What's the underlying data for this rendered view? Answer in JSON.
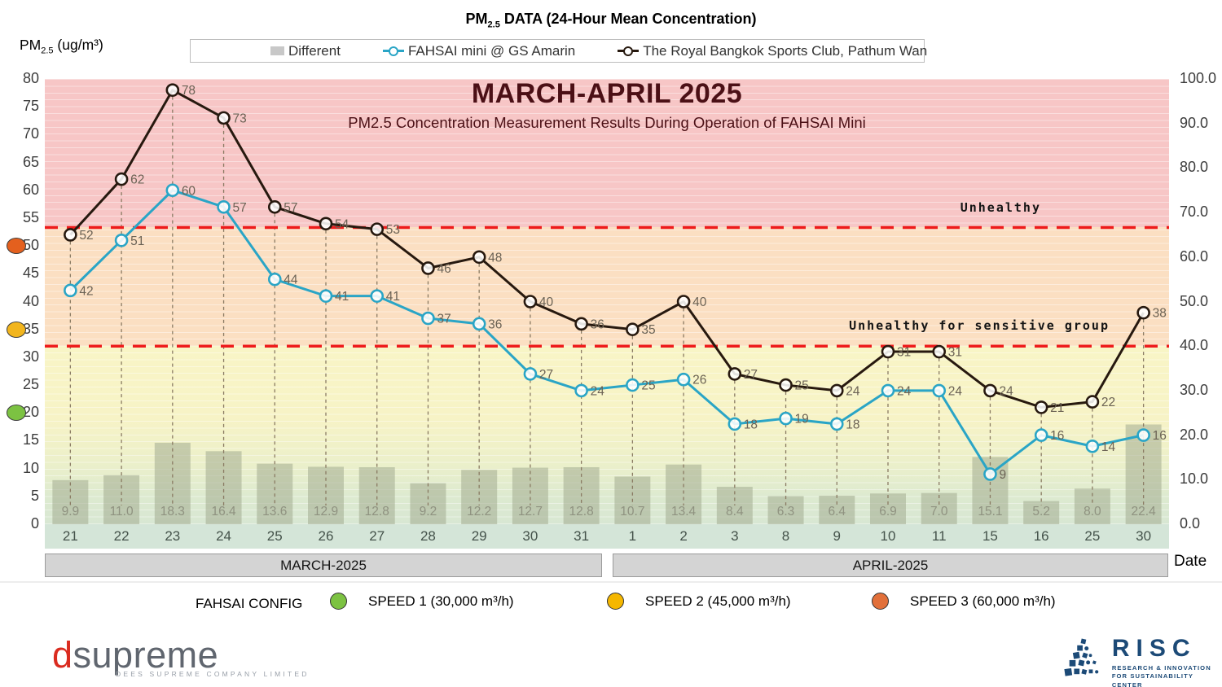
{
  "header": {
    "title_prefix": "PM",
    "title_sub": "2.5",
    "title_rest": " DATA (24-Hour Mean Concentration)",
    "y_axis_prefix": "PM",
    "y_axis_sub": "2.5",
    "y_axis_rest": " (ug/m³)"
  },
  "legend": {
    "items": [
      {
        "label": "Different",
        "marker": "bar-swatch",
        "color": "#c8c8c8"
      },
      {
        "label": "FAHSAI mini @ GS Amarin",
        "marker": "line-circle",
        "color": "#2aa5c6"
      },
      {
        "label": "The Royal Bangkok Sports Club, Pathum Wan",
        "marker": "line-circle",
        "color": "#27190f"
      }
    ]
  },
  "chart_data": {
    "type": "combo-bar-line",
    "title": "MARCH-APRIL 2025",
    "subtitle": "PM2.5 Concentration Measurement Results During Operation of FAHSAI Mini",
    "xlabel": "Date",
    "categories": [
      "21",
      "22",
      "23",
      "24",
      "25",
      "26",
      "27",
      "28",
      "29",
      "30",
      "31",
      "1",
      "2",
      "3",
      "8",
      "9",
      "10",
      "11",
      "15",
      "16",
      "25",
      "30"
    ],
    "month_groups": [
      {
        "label": "MARCH-2025",
        "start_index": 0,
        "end_index": 10
      },
      {
        "label": "APRIL-2025",
        "start_index": 11,
        "end_index": 21
      }
    ],
    "left_axis": {
      "min": 0,
      "max": 80,
      "step": 5
    },
    "right_axis": {
      "min": 0,
      "max": 100,
      "step": 10,
      "decimals": 1
    },
    "value_label_color": "#6b6254",
    "series": [
      {
        "name": "Different",
        "type": "bar",
        "axis": "right",
        "color": "rgba(163,172,143,0.55)",
        "label_color": "#8f9280",
        "values": [
          9.9,
          11.0,
          18.3,
          16.4,
          13.6,
          12.9,
          12.8,
          9.2,
          12.2,
          12.7,
          12.8,
          10.7,
          13.4,
          8.4,
          6.3,
          6.4,
          6.9,
          7.0,
          15.1,
          5.2,
          8.0,
          22.4
        ]
      },
      {
        "name": "FAHSAI mini @ GS Amarin",
        "type": "line",
        "axis": "left",
        "color": "#2aa5c6",
        "values": [
          42,
          51,
          60,
          57,
          44,
          41,
          41,
          37,
          36,
          27,
          24,
          25,
          26,
          18,
          19,
          18,
          24,
          24,
          9,
          16,
          14,
          16
        ]
      },
      {
        "name": "The Royal Bangkok Sports Club, Pathum Wan",
        "type": "line",
        "axis": "left",
        "color": "#27190f",
        "values": [
          52,
          62,
          78,
          73,
          57,
          54,
          53,
          46,
          48,
          40,
          36,
          35,
          40,
          27,
          25,
          24,
          31,
          31,
          24,
          21,
          22,
          38
        ]
      }
    ],
    "thresholds": [
      {
        "label": "Unhealthy",
        "value_left_axis": 53.3,
        "color": "#ee1b1b"
      },
      {
        "label": "Unhealthy for sensitive group",
        "value_left_axis": 32,
        "color": "#ee1b1b"
      }
    ],
    "speed_markers": [
      {
        "value_left_axis": 50,
        "color": "#e4601e"
      },
      {
        "value_left_axis": 35,
        "color": "#f2b51d"
      },
      {
        "value_left_axis": 20,
        "color": "#7cc242"
      }
    ],
    "zones": [
      {
        "name": "unhealthy-red",
        "from": 53.3,
        "to": 80,
        "color": "#f7c6c6"
      },
      {
        "name": "orange",
        "from": 32,
        "to": 53.3,
        "color": "#fbdfc2"
      },
      {
        "name": "yellow",
        "from": 12,
        "to": 32,
        "color": "#f8f5c6"
      },
      {
        "name": "green",
        "from": 0,
        "to": 12,
        "color": "#d8e7d3"
      }
    ]
  },
  "footer": {
    "config_title": "FAHSAI CONFIG",
    "config_items": [
      {
        "label": "SPEED 1 (30,000 m³/h)",
        "color": "#7cc242"
      },
      {
        "label": "SPEED 2 (45,000 m³/h)",
        "color": "#f5b700"
      },
      {
        "label": "SPEED 3 (60,000 m³/h)",
        "color": "#e2703a"
      }
    ]
  },
  "logos": {
    "dsupreme": {
      "first_letter": "d",
      "rest": "supreme",
      "tagline": "DEES SUPREME COMPANY LIMITED"
    },
    "risc": {
      "name": "RISC",
      "tagline_line1": "RESEARCH & INNOVATION",
      "tagline_line2": "FOR SUSTAINABILITY CENTER"
    }
  }
}
